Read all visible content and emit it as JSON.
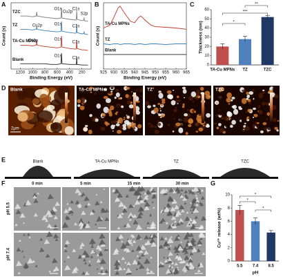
{
  "chart_data": [
    {
      "type": "line",
      "x_label": "Binding Energy (eV)",
      "y_label": "Count (s)",
      "x": [
        1200,
        1100,
        1000,
        940,
        933,
        925,
        800,
        700,
        600,
        540,
        531,
        522,
        400,
        300,
        290,
        284,
        278,
        200,
        168,
        164,
        160,
        100
      ],
      "xlim": [
        1350,
        50
      ],
      "xticks": [
        1200,
        1000,
        800,
        600,
        400,
        200
      ],
      "ylim": [
        0,
        100
      ],
      "series": [
        {
          "name": "TZC",
          "color": "#7a7a7a",
          "values": [
            80,
            80,
            79,
            80,
            86,
            80,
            78,
            77,
            76,
            77,
            92,
            77,
            75,
            74,
            75,
            88,
            75,
            73,
            74,
            78,
            73,
            72
          ]
        },
        {
          "name": "TZ",
          "color": "#3a7fb5",
          "values": [
            60,
            60,
            59,
            60,
            64,
            60,
            58,
            57,
            56,
            57,
            72,
            57,
            55,
            54,
            55,
            68,
            55,
            53,
            54,
            57,
            53,
            52
          ]
        },
        {
          "name": "TA-Cu MPNs",
          "color": "#c0392b",
          "values": [
            36,
            36,
            35,
            36,
            42,
            36,
            34,
            33,
            32,
            33,
            50,
            33,
            31,
            30,
            31,
            44,
            31,
            29,
            29,
            29,
            29,
            28
          ]
        },
        {
          "name": "Blank",
          "color": "#222222",
          "values": [
            8,
            8,
            8,
            8,
            8,
            8,
            8,
            7,
            7,
            8,
            24,
            8,
            7,
            7,
            7,
            18,
            7,
            6,
            6,
            6,
            6,
            6
          ]
        }
      ],
      "annotations": [
        "O1s",
        "Cu2p",
        "C1s",
        "S2p",
        "Cu2p",
        "O1s",
        "C1s",
        "Cu2p",
        "O1s",
        "C1s",
        "O1s",
        "C1s"
      ]
    },
    {
      "type": "line",
      "x_label": "Binding Energy (eV)",
      "y_label": "Count (s)",
      "x": [
        925,
        928,
        930,
        932,
        933,
        935,
        938,
        940,
        942,
        943,
        945,
        948,
        950,
        955,
        960,
        965
      ],
      "xlim": [
        925,
        965
      ],
      "xticks": [
        925,
        930,
        935,
        940,
        945,
        950,
        955,
        960,
        965
      ],
      "ylim": [
        0,
        100
      ],
      "series": [
        {
          "name": "TA-Cu MPNs",
          "color": "#c0392b",
          "values": [
            62,
            66,
            78,
            92,
            95,
            85,
            72,
            70,
            78,
            80,
            74,
            66,
            64,
            63,
            62,
            60
          ]
        },
        {
          "name": "TZ",
          "color": "#3a7fb5",
          "values": [
            38,
            37,
            38,
            38,
            37,
            38,
            38,
            37,
            38,
            38,
            37,
            38,
            38,
            37,
            38,
            38
          ]
        },
        {
          "name": "Blank",
          "color": "#222222",
          "values": [
            22,
            22,
            22,
            22,
            22,
            22,
            22,
            22,
            22,
            22,
            22,
            22,
            22,
            22,
            22,
            22
          ]
        }
      ]
    },
    {
      "type": "bar",
      "y_label": "Thickness (nm)",
      "categories": [
        "TA-Cu MPNs",
        "TZ",
        "TZC"
      ],
      "values": [
        20,
        28,
        52
      ],
      "errors": [
        3,
        3,
        1.5
      ],
      "colors": [
        "#c0504d",
        "#4f81bd",
        "#1f3864"
      ],
      "ylim": [
        0,
        60
      ],
      "yticks": [
        0,
        10,
        20,
        30,
        40,
        50,
        60
      ],
      "significance": [
        "**",
        "***",
        "*"
      ]
    },
    {
      "type": "bar",
      "y_label": "Cu²⁺ release (wt%)",
      "x_label": "pH",
      "categories": [
        "5.5",
        "7.4",
        "8.5"
      ],
      "values": [
        7.7,
        6.0,
        4.3
      ],
      "errors": [
        0.7,
        0.5,
        0.3
      ],
      "colors": [
        "#c0504d",
        "#4f81bd",
        "#1f3864"
      ],
      "ylim": [
        0,
        10
      ],
      "yticks": [
        0,
        2,
        4,
        6,
        8,
        10
      ],
      "significance": [
        "*",
        "*",
        "*"
      ]
    }
  ],
  "panel_labels": [
    "A",
    "B",
    "C",
    "D",
    "E",
    "F",
    "G"
  ],
  "afm": {
    "titles": [
      "Blank",
      "TA-Cu MPNs",
      "TZ",
      "TZC"
    ],
    "scale_bar": "2μm"
  },
  "contact_angle": {
    "titles": [
      "Blank",
      "TA-Cu MPNs",
      "TZ",
      "TZC"
    ]
  },
  "sem": {
    "columns": [
      "0 min",
      "5 min",
      "15 min",
      "30 min"
    ],
    "rows": [
      "pH 5.5",
      "pH 7.4"
    ]
  }
}
